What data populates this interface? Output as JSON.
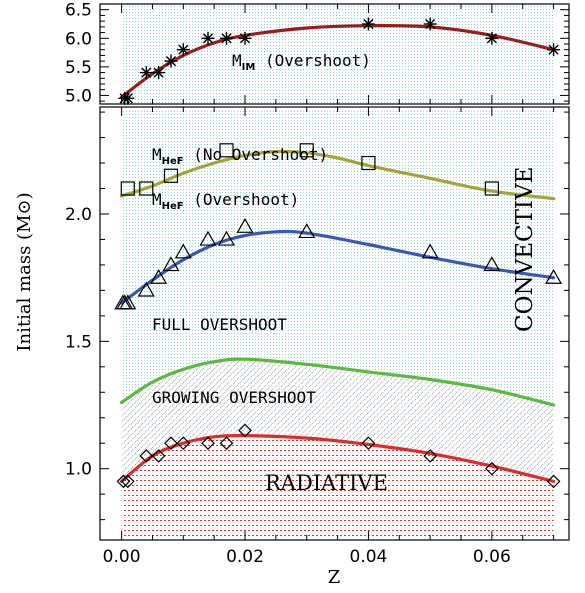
{
  "chart_data": {
    "type": "line",
    "xlabel": "Z",
    "ylabel": "Initial mass (M⊙)",
    "x_ticks": [
      "0.00",
      "0.02",
      "0.04",
      "0.06"
    ],
    "xlim": [
      -0.0035,
      0.0725
    ],
    "grid": false,
    "panels": [
      {
        "id": "top",
        "ylim": [
          4.85,
          6.6
        ],
        "y_ticks": [
          "5.0",
          "5.5",
          "6.0",
          "6.5"
        ],
        "series": [
          {
            "name": "M_IM (Overshoot)",
            "label_main": "M",
            "label_sub": "IM",
            "label_suffix": " (Overshoot)",
            "marker": "asterisk",
            "color": "#9b1c1c",
            "points": [
              [
                0.0005,
                4.95
              ],
              [
                0.001,
                4.95
              ],
              [
                0.004,
                5.4
              ],
              [
                0.006,
                5.4
              ],
              [
                0.008,
                5.6
              ],
              [
                0.01,
                5.8
              ],
              [
                0.014,
                6.0
              ],
              [
                0.017,
                6.0
              ],
              [
                0.02,
                6.0
              ],
              [
                0.04,
                6.25
              ],
              [
                0.05,
                6.25
              ],
              [
                0.06,
                6.0
              ],
              [
                0.07,
                5.8
              ]
            ],
            "curve": [
              [
                0.0,
                4.97
              ],
              [
                0.005,
                5.38
              ],
              [
                0.01,
                5.7
              ],
              [
                0.015,
                5.92
              ],
              [
                0.02,
                6.05
              ],
              [
                0.03,
                6.18
              ],
              [
                0.04,
                6.22
              ],
              [
                0.05,
                6.2
              ],
              [
                0.06,
                6.05
              ],
              [
                0.07,
                5.8
              ]
            ]
          }
        ]
      },
      {
        "id": "bottom",
        "ylim": [
          0.72,
          2.42
        ],
        "y_ticks": [
          "1.0",
          "1.5",
          "2.0"
        ],
        "series": [
          {
            "name": "M_HeF (No Overshoot)",
            "label_main": "M",
            "label_sub": "HeF",
            "label_suffix": " (No Overshoot)",
            "marker": "square",
            "color": "#a3a437",
            "points": [
              [
                0.001,
                2.1
              ],
              [
                0.004,
                2.1
              ],
              [
                0.008,
                2.15
              ],
              [
                0.017,
                2.25
              ],
              [
                0.03,
                2.25
              ],
              [
                0.04,
                2.2
              ],
              [
                0.06,
                2.1
              ]
            ],
            "curve": [
              [
                0.0,
                2.07
              ],
              [
                0.005,
                2.11
              ],
              [
                0.01,
                2.16
              ],
              [
                0.015,
                2.2
              ],
              [
                0.02,
                2.23
              ],
              [
                0.025,
                2.245
              ],
              [
                0.03,
                2.24
              ],
              [
                0.035,
                2.22
              ],
              [
                0.04,
                2.19
              ],
              [
                0.05,
                2.14
              ],
              [
                0.06,
                2.09
              ],
              [
                0.07,
                2.06
              ]
            ]
          },
          {
            "name": "M_HeF (Overshoot)",
            "label_main": "M",
            "label_sub": "HeF",
            "label_suffix": " (Overshoot)",
            "marker": "triangle",
            "color": "#3b56b3",
            "points": [
              [
                0.0002,
                1.65
              ],
              [
                0.0005,
                1.65
              ],
              [
                0.001,
                1.65
              ],
              [
                0.004,
                1.7
              ],
              [
                0.006,
                1.75
              ],
              [
                0.008,
                1.8
              ],
              [
                0.01,
                1.85
              ],
              [
                0.014,
                1.9
              ],
              [
                0.017,
                1.9
              ],
              [
                0.02,
                1.95
              ],
              [
                0.03,
                1.93
              ],
              [
                0.05,
                1.85
              ],
              [
                0.06,
                1.8
              ],
              [
                0.07,
                1.75
              ]
            ],
            "curve": [
              [
                0.0,
                1.65
              ],
              [
                0.005,
                1.74
              ],
              [
                0.01,
                1.82
              ],
              [
                0.015,
                1.88
              ],
              [
                0.02,
                1.915
              ],
              [
                0.025,
                1.93
              ],
              [
                0.03,
                1.925
              ],
              [
                0.04,
                1.88
              ],
              [
                0.05,
                1.83
              ],
              [
                0.06,
                1.785
              ],
              [
                0.07,
                1.75
              ]
            ]
          },
          {
            "name": "Full overshoot boundary",
            "marker": "none",
            "color": "#5cb83f",
            "curve": [
              [
                0.0,
                1.26
              ],
              [
                0.005,
                1.34
              ],
              [
                0.01,
                1.39
              ],
              [
                0.015,
                1.42
              ],
              [
                0.02,
                1.43
              ],
              [
                0.03,
                1.41
              ],
              [
                0.04,
                1.38
              ],
              [
                0.05,
                1.35
              ],
              [
                0.06,
                1.31
              ],
              [
                0.07,
                1.25
              ]
            ]
          },
          {
            "name": "Radiative boundary",
            "marker": "diamond",
            "color": "#dd2a2a",
            "points": [
              [
                0.0003,
                0.95
              ],
              [
                0.001,
                0.95
              ],
              [
                0.004,
                1.05
              ],
              [
                0.006,
                1.05
              ],
              [
                0.008,
                1.1
              ],
              [
                0.01,
                1.1
              ],
              [
                0.014,
                1.1
              ],
              [
                0.017,
                1.1
              ],
              [
                0.02,
                1.15
              ],
              [
                0.04,
                1.1
              ],
              [
                0.05,
                1.05
              ],
              [
                0.06,
                1.0
              ],
              [
                0.07,
                0.95
              ]
            ],
            "curve": [
              [
                0.0,
                0.95
              ],
              [
                0.005,
                1.05
              ],
              [
                0.01,
                1.1
              ],
              [
                0.015,
                1.125
              ],
              [
                0.02,
                1.13
              ],
              [
                0.03,
                1.12
              ],
              [
                0.04,
                1.095
              ],
              [
                0.05,
                1.06
              ],
              [
                0.06,
                1.01
              ],
              [
                0.07,
                0.95
              ]
            ]
          }
        ],
        "regions": [
          {
            "label": "CONVECTIVE",
            "color": "#8fd0d8"
          },
          {
            "label": "FULL OVERSHOOT",
            "color": "#8fd0d8"
          },
          {
            "label": "GROWING OVERSHOOT",
            "color": "#1f3f5f"
          },
          {
            "label": "RADIATIVE",
            "color": "#e03030"
          }
        ]
      }
    ]
  }
}
